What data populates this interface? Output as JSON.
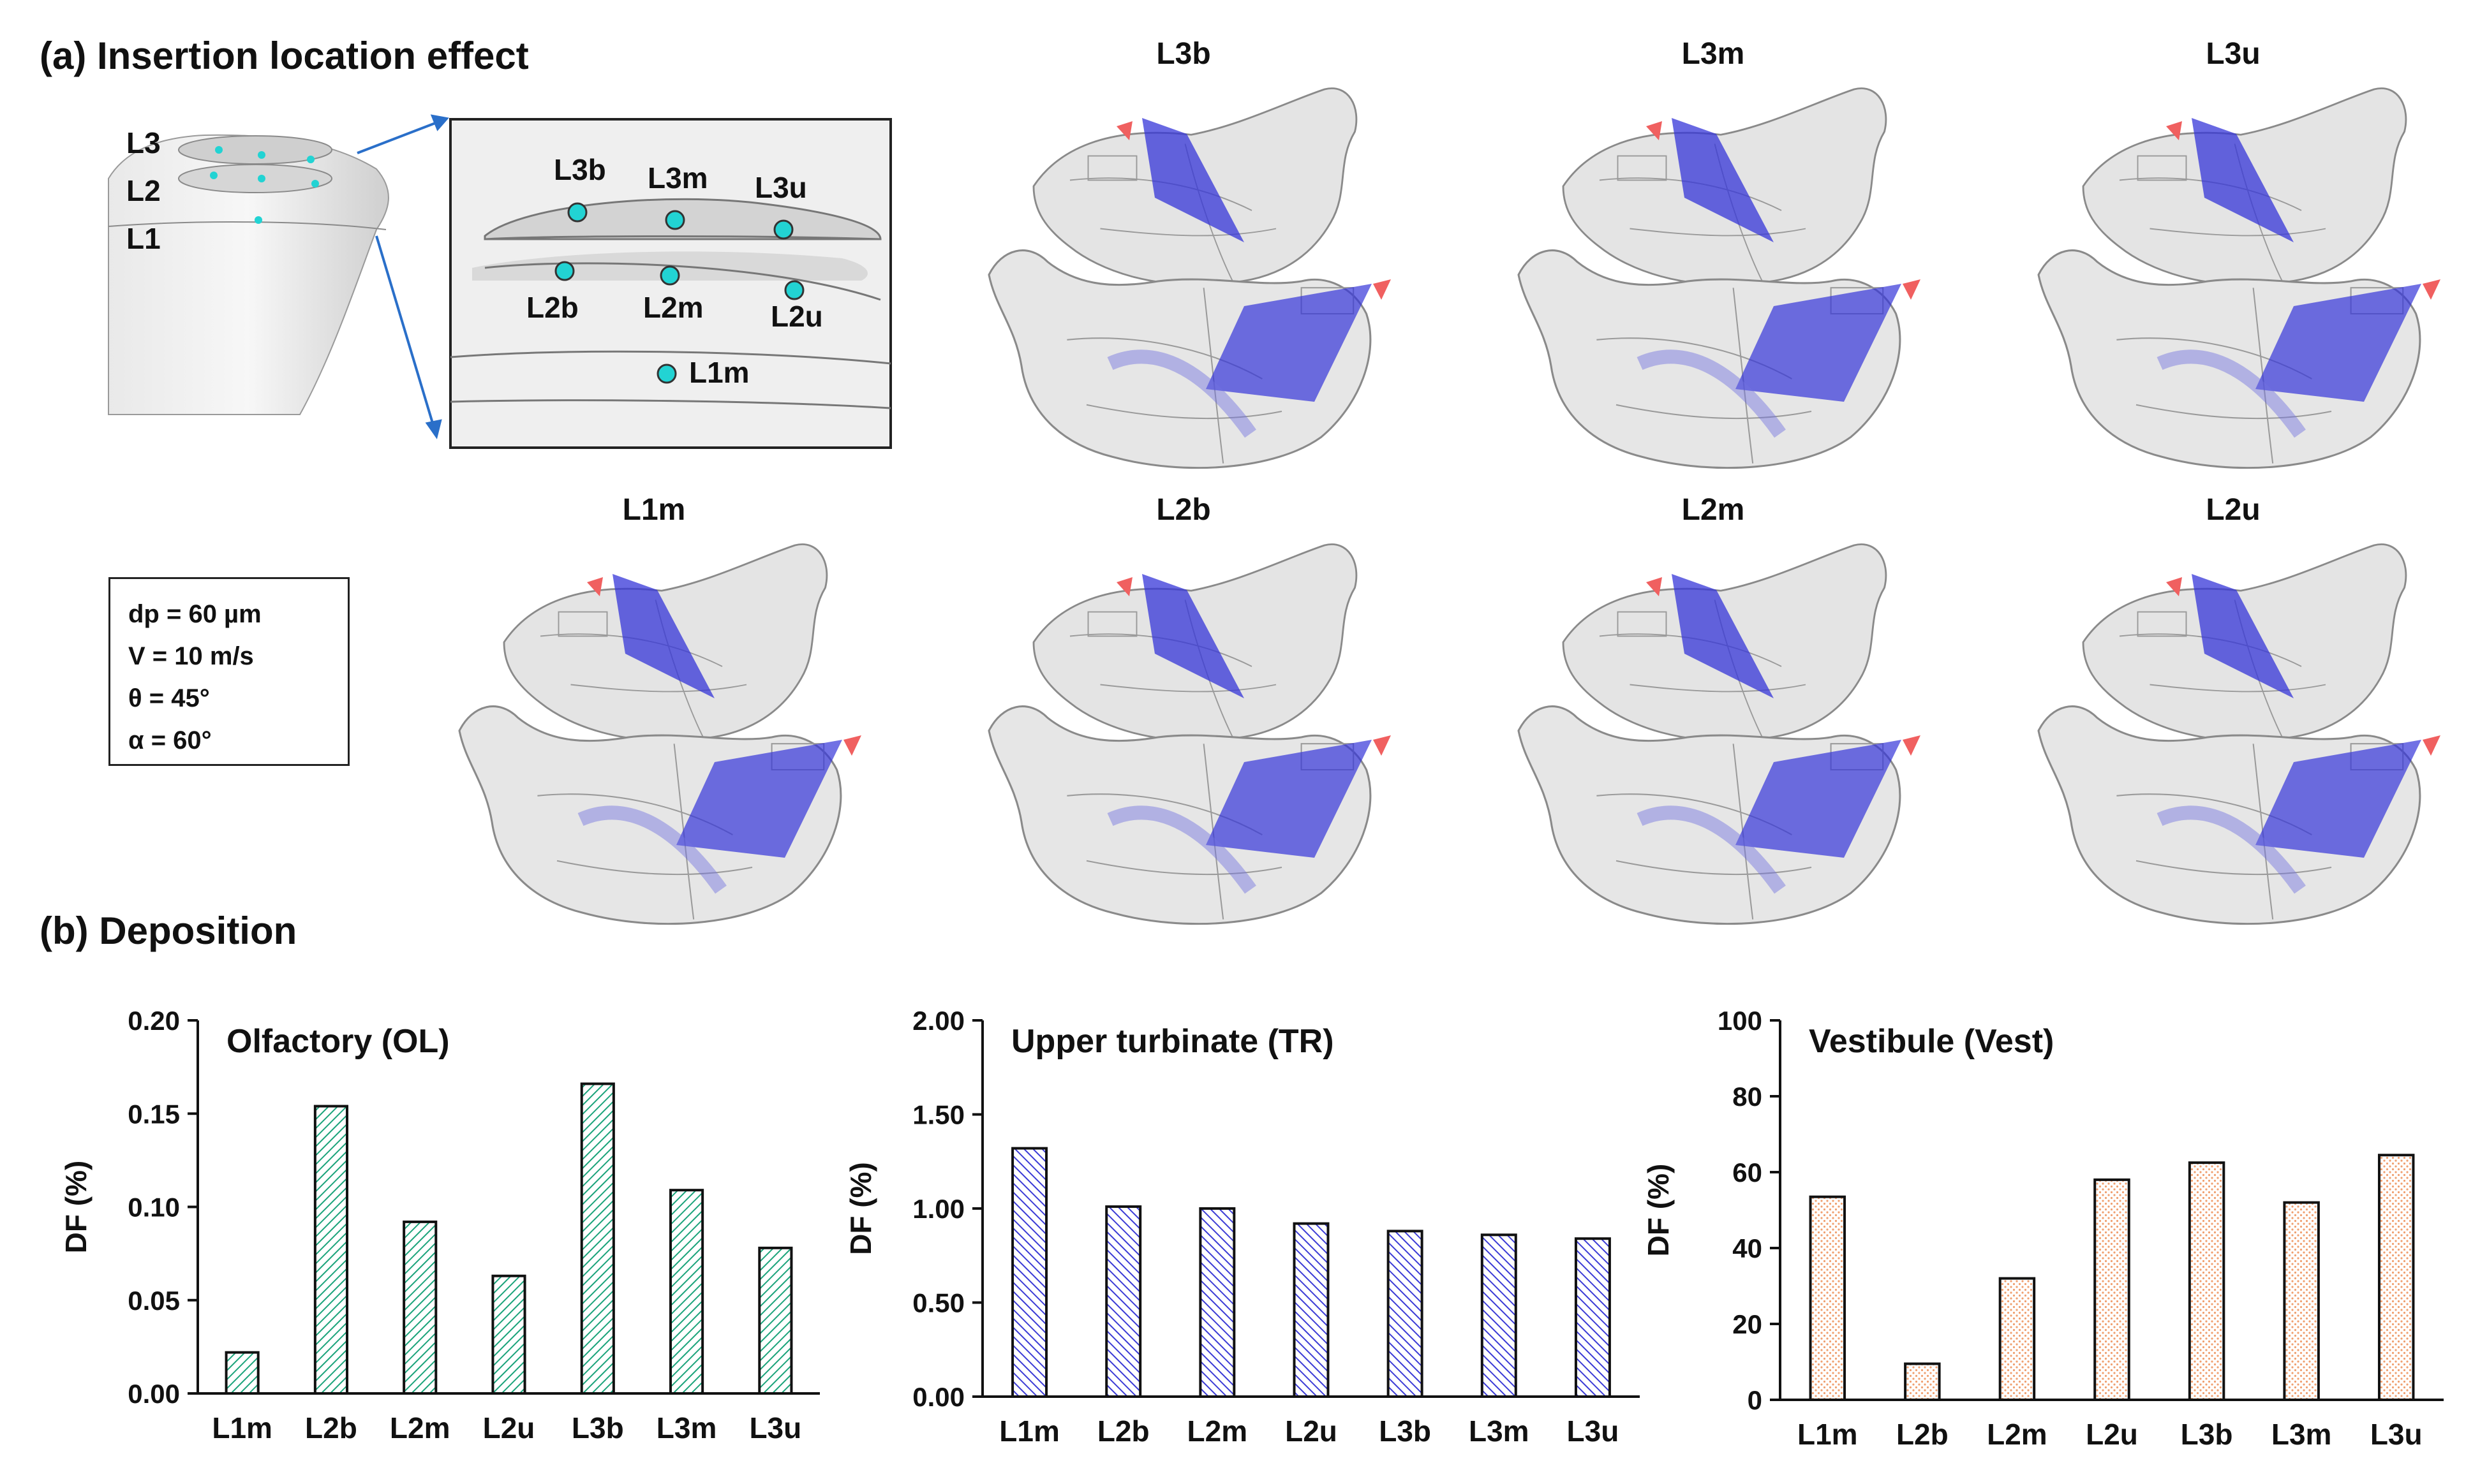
{
  "panel_a": {
    "title": "(a) Insertion location effect",
    "layer_labels": [
      "L3",
      "L2",
      "L1"
    ],
    "inset_points": [
      "L3b",
      "L3m",
      "L3u",
      "L2b",
      "L2m",
      "L2u",
      "L1m"
    ],
    "case_labels_row1": [
      "L3b",
      "L3m",
      "L3u"
    ],
    "case_labels_row2": [
      "L1m",
      "L2b",
      "L2m",
      "L2u"
    ],
    "params": [
      "dp = 60 µm",
      "V = 10 m/s",
      "θ = 45°",
      "α = 60°"
    ]
  },
  "panel_b": {
    "title": "(b) Deposition"
  },
  "chart_data": [
    {
      "type": "bar",
      "title": "Olfactory (OL)",
      "categories": [
        "L1m",
        "L2b",
        "L2m",
        "L2u",
        "L3b",
        "L3m",
        "L3u"
      ],
      "values": [
        0.022,
        0.154,
        0.092,
        0.063,
        0.166,
        0.109,
        0.078
      ],
      "ylabel": "DF (%)",
      "ylim": [
        0,
        0.2
      ],
      "yticks": [
        "0.00",
        "0.05",
        "0.10",
        "0.15",
        "0.20"
      ],
      "color": "#1aa37a"
    },
    {
      "type": "bar",
      "title": "Upper turbinate (TR)",
      "categories": [
        "L1m",
        "L2b",
        "L2m",
        "L2u",
        "L3b",
        "L3m",
        "L3u"
      ],
      "values": [
        1.32,
        1.01,
        1.0,
        0.92,
        0.88,
        0.86,
        0.84
      ],
      "ylabel": "DF (%)",
      "ylim": [
        0,
        2.0
      ],
      "yticks": [
        "0.00",
        "0.50",
        "1.00",
        "1.50",
        "2.00"
      ],
      "color": "#3b3bd6"
    },
    {
      "type": "bar",
      "title": "Vestibule (Vest)",
      "categories": [
        "L1m",
        "L2b",
        "L2m",
        "L2u",
        "L3b",
        "L3m",
        "L3u"
      ],
      "values": [
        53.5,
        9.5,
        32,
        58,
        62.5,
        52,
        64.5
      ],
      "ylabel": "DF (%)",
      "ylim": [
        0,
        100
      ],
      "yticks": [
        "0",
        "20",
        "40",
        "60",
        "80",
        "100"
      ],
      "color": "#f0a070"
    }
  ]
}
